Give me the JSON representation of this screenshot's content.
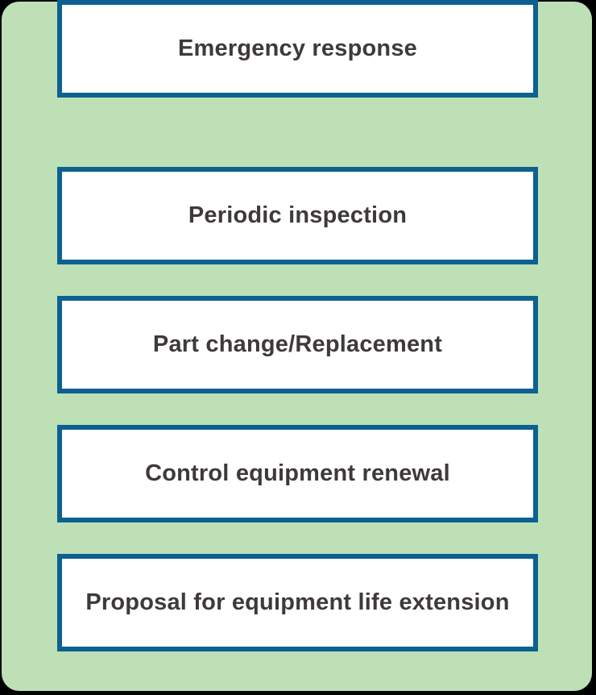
{
  "diagram": {
    "description": "Vertical list of five maintenance-service steps inside a rounded green panel",
    "boxes": [
      {
        "label": "Periodic inspection"
      },
      {
        "label": "Part change/Replacement"
      },
      {
        "label": "Control equipment renewal"
      },
      {
        "label": "Proposal for equipment life extension"
      },
      {
        "label": "Emergency response"
      }
    ]
  },
  "colors": {
    "outer_background": "#000000",
    "card_green": "#bde0b7",
    "box_border_blue": "#0c6190",
    "box_fill": "#ffffff",
    "label_gray": "#3e3a39"
  }
}
